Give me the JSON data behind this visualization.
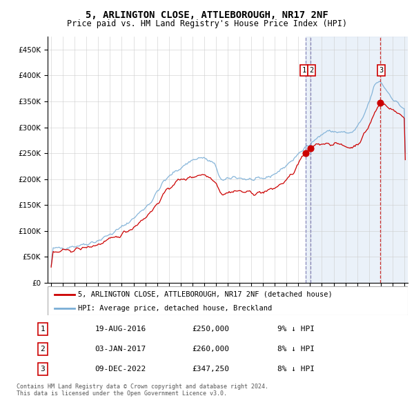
{
  "title": "5, ARLINGTON CLOSE, ATTLEBOROUGH, NR17 2NF",
  "subtitle": "Price paid vs. HM Land Registry's House Price Index (HPI)",
  "legend_line1": "5, ARLINGTON CLOSE, ATTLEBOROUGH, NR17 2NF (detached house)",
  "legend_line2": "HPI: Average price, detached house, Breckland",
  "footnote": "Contains HM Land Registry data © Crown copyright and database right 2024.\nThis data is licensed under the Open Government Licence v3.0.",
  "transactions": [
    {
      "num": 1,
      "date": "19-AUG-2016",
      "price": "£250,000",
      "pct": "9% ↓ HPI"
    },
    {
      "num": 2,
      "date": "03-JAN-2017",
      "price": "£260,000",
      "pct": "8% ↓ HPI"
    },
    {
      "num": 3,
      "date": "09-DEC-2022",
      "price": "£347,250",
      "pct": "8% ↓ HPI"
    }
  ],
  "sale_dates_decimal": [
    2016.633,
    2017.008,
    2022.936
  ],
  "sale_prices": [
    250000,
    260000,
    347250
  ],
  "vline1_x": 2016.633,
  "vline2_x": 2017.008,
  "vline3_x": 2022.936,
  "hpi_color": "#7aaed6",
  "price_color": "#cc0000",
  "vline12_color": "#8888bb",
  "vline3_color": "#cc3333",
  "background_shade": "#dde8f5",
  "ylim": [
    0,
    475000
  ],
  "yticks": [
    0,
    50000,
    100000,
    150000,
    200000,
    250000,
    300000,
    350000,
    400000,
    450000
  ],
  "xlim_left": 1994.7,
  "xlim_right": 2025.3,
  "title_fontsize": 10,
  "subtitle_fontsize": 8.5,
  "tick_fontsize": 7,
  "legend_fontsize": 7.5,
  "table_fontsize": 8,
  "footnote_fontsize": 6,
  "box_color": "#cc0000"
}
